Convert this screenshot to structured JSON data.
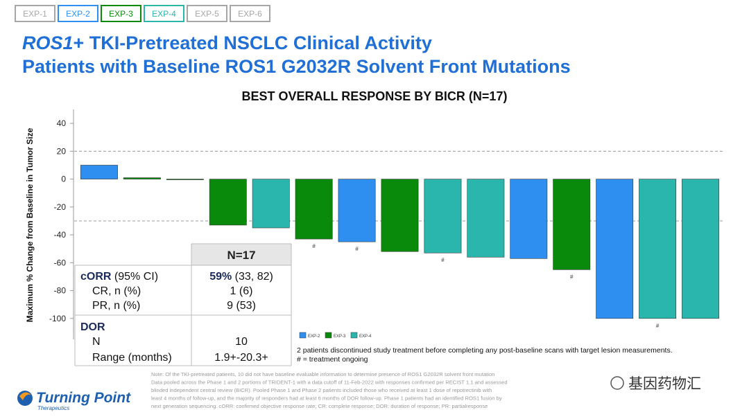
{
  "tabs": [
    {
      "label": "EXP-1",
      "color": "#a6a6a6"
    },
    {
      "label": "EXP-2",
      "color": "#2e8ff0"
    },
    {
      "label": "EXP-3",
      "color": "#0a8a0a"
    },
    {
      "label": "EXP-4",
      "color": "#2ab5ad"
    },
    {
      "label": "EXP-5",
      "color": "#a6a6a6"
    },
    {
      "label": "EXP-6",
      "color": "#a6a6a6"
    }
  ],
  "title": {
    "italic": "ROS1",
    "rest": "+ TKI-Pretreated NSCLC Clinical Activity",
    "line2": "Patients with Baseline ROS1 G2032R Solvent Front Mutations"
  },
  "chart_data": {
    "type": "bar",
    "title": "BEST OVERALL RESPONSE BY BICR (N=17)",
    "y_label": "Maximum % Change from Baseline in Tumor Size",
    "series": [
      {
        "name": "EXP-2",
        "color": "#2e8ff0",
        "values": [
          10,
          null,
          null,
          null,
          null,
          null,
          -45,
          null,
          null,
          null,
          -57,
          null,
          -100,
          null,
          null
        ]
      },
      {
        "name": "EXP-3",
        "color": "#0a8a0a",
        "values": [
          null,
          1,
          0,
          -33,
          null,
          -43,
          null,
          -52,
          null,
          null,
          null,
          -65,
          null,
          null,
          null
        ]
      },
      {
        "name": "EXP-4",
        "color": "#2ab5ad",
        "values": [
          null,
          null,
          null,
          null,
          -35,
          null,
          null,
          null,
          -53,
          -56,
          null,
          null,
          null,
          -100,
          -100
        ]
      }
    ],
    "annotations": [
      null,
      null,
      null,
      null,
      null,
      "#",
      "#",
      null,
      "#",
      null,
      null,
      "#",
      null,
      "#",
      null
    ],
    "ylim": [
      -115,
      50
    ],
    "yticks": [
      40,
      20,
      0,
      -20,
      -40,
      -60,
      -80,
      -100
    ],
    "reference_lines": [
      20,
      -30
    ],
    "footnotes": [
      "2 patients discontinued study treatment before completing any post-baseline scans with target lesion measurements.",
      "# = treatment ongoing"
    ]
  },
  "table": {
    "header": "N=17",
    "corr_label_bold": "cORR",
    "corr_label": "(95% CI)",
    "corr_value_bold": "59%",
    "corr_value": "(33, 82)",
    "rows1": [
      [
        "CR, n (%)",
        "1 (6)"
      ],
      [
        "PR, n (%)",
        "9 (53)"
      ]
    ],
    "dor": "DOR",
    "rows2": [
      [
        "N",
        "10"
      ],
      [
        "Range (months)",
        "1.9+-20.3+"
      ]
    ]
  },
  "notes": [
    "Note: Of the TKI-pretreated patients, 10 did not have baseline evaluable information to determine presence of ROS1 G2032R solvent front mutation",
    "Data pooled across the Phase 1 and 2 portions of TRIDENT-1 with a data cutoff of 11-Feb-2022 with responses confirmed per RECIST 1.1 and assessed",
    "blinded independent central review (BICR). Pooled Phase 1 and Phase 2 patients included those who received at least 1 dose of repotrectinib with",
    "least 4 months of follow-up, and the majority of responders had at least 6 months of DOR follow-up. Phase 1 patients had an identified ROS1 fusion by",
    "next generation sequencing. cORR: confirmed objective response rate; CR: complete response; DOR: duration of response; PR: partialresponse"
  ],
  "logo": {
    "name": "Turning Point",
    "sub": "Therapeutics"
  },
  "watermark": "基因药物汇"
}
